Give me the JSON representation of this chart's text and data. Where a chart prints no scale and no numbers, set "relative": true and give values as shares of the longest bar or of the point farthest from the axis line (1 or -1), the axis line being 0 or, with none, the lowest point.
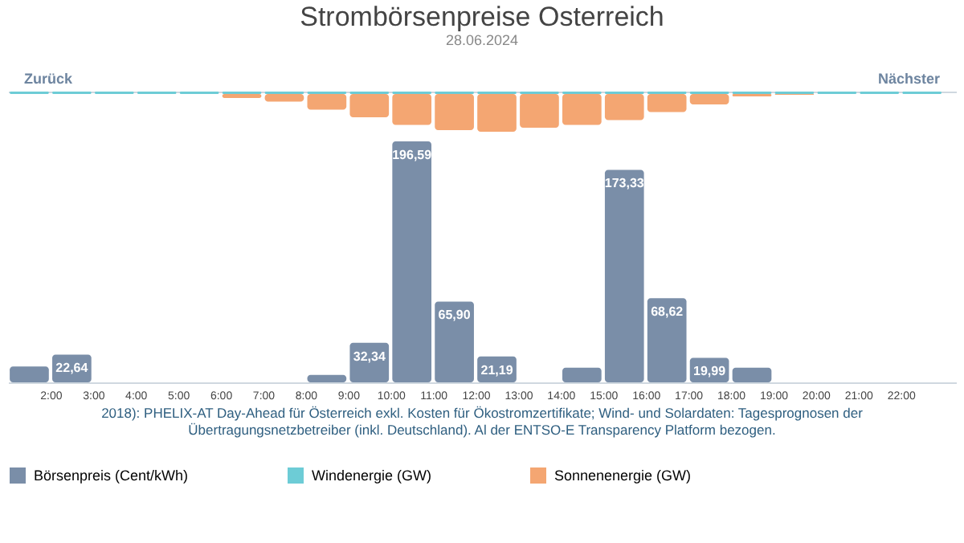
{
  "chart_data": [
    {
      "type": "bar",
      "title": "Strombörsenpreise Osterreich",
      "subtitle": "28.06.2024",
      "relative": true,
      "stacked": true,
      "legend": "bottom",
      "annotations": [
        "Zurück",
        "Nächster"
      ],
      "x": [
        1.5,
        2.5,
        3.5,
        4.5,
        5.5,
        6.5,
        7.5,
        8.5,
        9.5,
        10.5,
        11.5,
        12.5,
        13.5,
        14.5,
        15.5,
        16.5,
        17.5,
        18.5,
        19.5,
        20.5,
        21.5,
        22.5
      ],
      "xlim": [
        1,
        23.3
      ],
      "tick_labels": false,
      "series": [
        {
          "name": "Windenergie (GW)",
          "color": "#6dccd6",
          "values": [
            -0.06,
            -0.06,
            -0.06,
            -0.06,
            -0.06,
            -0.06,
            -0.06,
            -0.06,
            -0.06,
            -0.06,
            -0.06,
            -0.06,
            -0.06,
            -0.06,
            -0.06,
            -0.06,
            -0.06,
            -0.06,
            -0.06,
            -0.06,
            -0.06,
            -0.06
          ]
        },
        {
          "name": "Sonnenenergie (GW)",
          "color": "#f4a672",
          "values": [
            0,
            0,
            0,
            0,
            0,
            -0.1,
            -0.19,
            -0.39,
            -0.58,
            -0.77,
            -0.9,
            -0.94,
            -0.84,
            -0.77,
            -0.65,
            -0.45,
            -0.26,
            -0.06,
            -0.02,
            0,
            0,
            0
          ]
        }
      ]
    },
    {
      "type": "bar",
      "legend": "bottom",
      "grid": false,
      "tick_labels": "x",
      "x": [
        1.5,
        2.5,
        3.5,
        4.5,
        5.5,
        6.5,
        7.5,
        8.5,
        9.5,
        10.5,
        11.5,
        12.5,
        13.5,
        14.5,
        15.5,
        16.5,
        17.5,
        18.5,
        19.5,
        20.5,
        21.5,
        22.5
      ],
      "xlim": [
        1,
        23.3
      ],
      "xticks": [
        {
          "value": 2,
          "label": "2:00"
        },
        {
          "value": 3,
          "label": "3:00"
        },
        {
          "value": 4,
          "label": "4:00"
        },
        {
          "value": 5,
          "label": "5:00"
        },
        {
          "value": 6,
          "label": "6:00"
        },
        {
          "value": 7,
          "label": "7:00"
        },
        {
          "value": 8,
          "label": "8:00"
        },
        {
          "value": 9,
          "label": "9:00"
        },
        {
          "value": 10,
          "label": "10:00"
        },
        {
          "value": 11,
          "label": "11:00"
        },
        {
          "value": 12,
          "label": "12:00"
        },
        {
          "value": 13,
          "label": "13:00"
        },
        {
          "value": 14,
          "label": "14:00"
        },
        {
          "value": 15,
          "label": "15:00"
        },
        {
          "value": 16,
          "label": "16:00"
        },
        {
          "value": 17,
          "label": "17:00"
        },
        {
          "value": 18,
          "label": "18:00"
        },
        {
          "value": 19,
          "label": "19:00"
        },
        {
          "value": 20,
          "label": "20:00"
        },
        {
          "value": 21,
          "label": "21:00"
        },
        {
          "value": 22,
          "label": "22:00"
        }
      ],
      "series": [
        {
          "name": "Börsenpreis (Cent/kWh)",
          "color": "#7a8ea8",
          "values": [
            13,
            22.64,
            0,
            0,
            0,
            0,
            0,
            6,
            32.34,
            196.59,
            65.9,
            21.19,
            0,
            12,
            173.33,
            68.62,
            19.99,
            12,
            0,
            0,
            0,
            0
          ],
          "value_labels": [
            null,
            "22,64",
            null,
            null,
            null,
            null,
            null,
            null,
            "32,34",
            "196,59",
            "65,90",
            "21,19",
            null,
            null,
            "173,33",
            "68,62",
            "19,99",
            null,
            null,
            null,
            null,
            null
          ]
        }
      ],
      "annotations": [
        "2018): PHELIX-AT Day-Ahead für Österreich exkl. Kosten für Ökostromzertifikate; Wind- und Solardaten: Tagesprognosen der Übertragungsnetzbetreiber (inkl. Deutschland). Al der ENTSO-E Transparency Platform bezogen."
      ]
    }
  ]
}
